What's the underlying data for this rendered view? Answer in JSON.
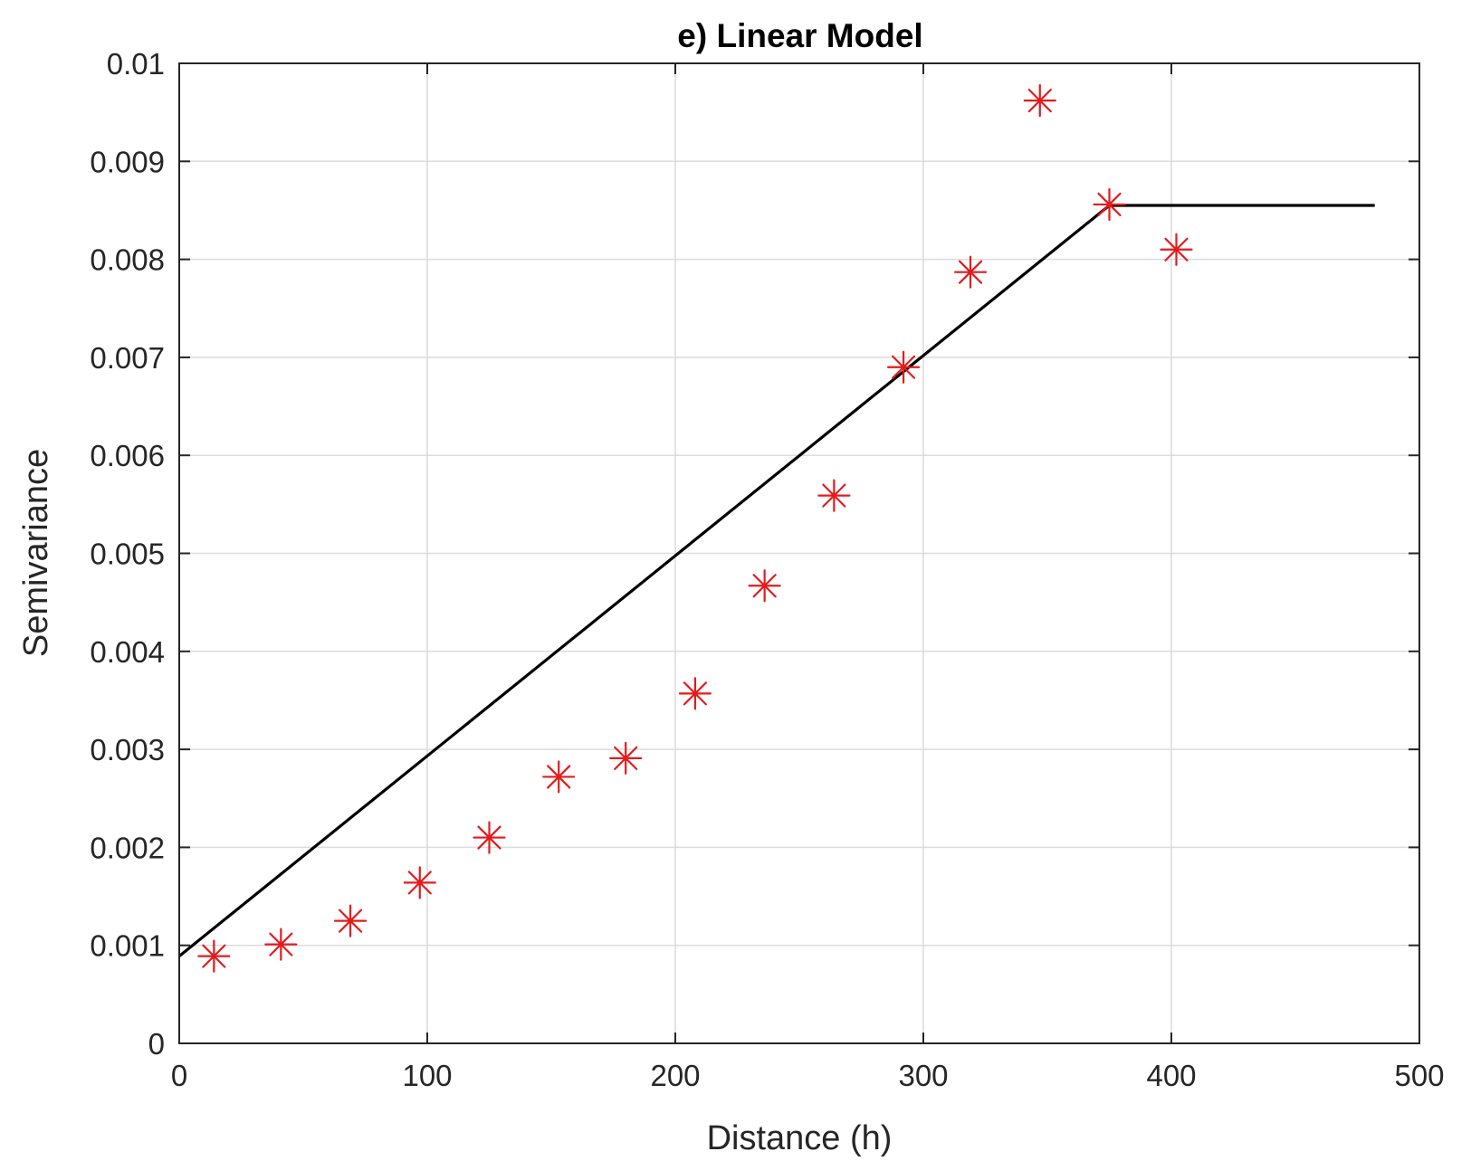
{
  "chart_data": {
    "type": "scatter",
    "title": "e) Linear Model",
    "xlabel": "Distance (h)",
    "ylabel": "Semivariance",
    "xlim": [
      0,
      500
    ],
    "ylim": [
      0,
      0.01
    ],
    "grid": true,
    "x_ticks": [
      0,
      100,
      200,
      300,
      400,
      500
    ],
    "x_tick_labels": [
      "0",
      "100",
      "200",
      "300",
      "400",
      "500"
    ],
    "y_ticks": [
      0,
      0.001,
      0.002,
      0.003,
      0.004,
      0.005,
      0.006,
      0.007,
      0.008,
      0.009,
      0.01
    ],
    "y_tick_labels": [
      "0",
      "0.001",
      "0.002",
      "0.003",
      "0.004",
      "0.005",
      "0.006",
      "0.007",
      "0.008",
      "0.009",
      "0.01"
    ],
    "series": [
      {
        "kind": "scatter",
        "marker": "asterisk",
        "color": "#e41a1c",
        "points": [
          {
            "x": 14,
            "y": 0.00089
          },
          {
            "x": 41,
            "y": 0.00101
          },
          {
            "x": 69,
            "y": 0.00125
          },
          {
            "x": 97,
            "y": 0.00164
          },
          {
            "x": 125,
            "y": 0.0021
          },
          {
            "x": 153,
            "y": 0.00272
          },
          {
            "x": 180,
            "y": 0.00291
          },
          {
            "x": 208,
            "y": 0.00357
          },
          {
            "x": 236,
            "y": 0.00467
          },
          {
            "x": 264,
            "y": 0.00559
          },
          {
            "x": 292,
            "y": 0.0069
          },
          {
            "x": 319,
            "y": 0.00787
          },
          {
            "x": 347,
            "y": 0.00962
          },
          {
            "x": 375,
            "y": 0.00856
          },
          {
            "x": 402,
            "y": 0.0081
          }
        ]
      },
      {
        "kind": "line",
        "color": "#000000",
        "points": [
          {
            "x": 0,
            "y": 0.00089
          },
          {
            "x": 375,
            "y": 0.00855
          },
          {
            "x": 482,
            "y": 0.00855
          }
        ]
      }
    ]
  }
}
